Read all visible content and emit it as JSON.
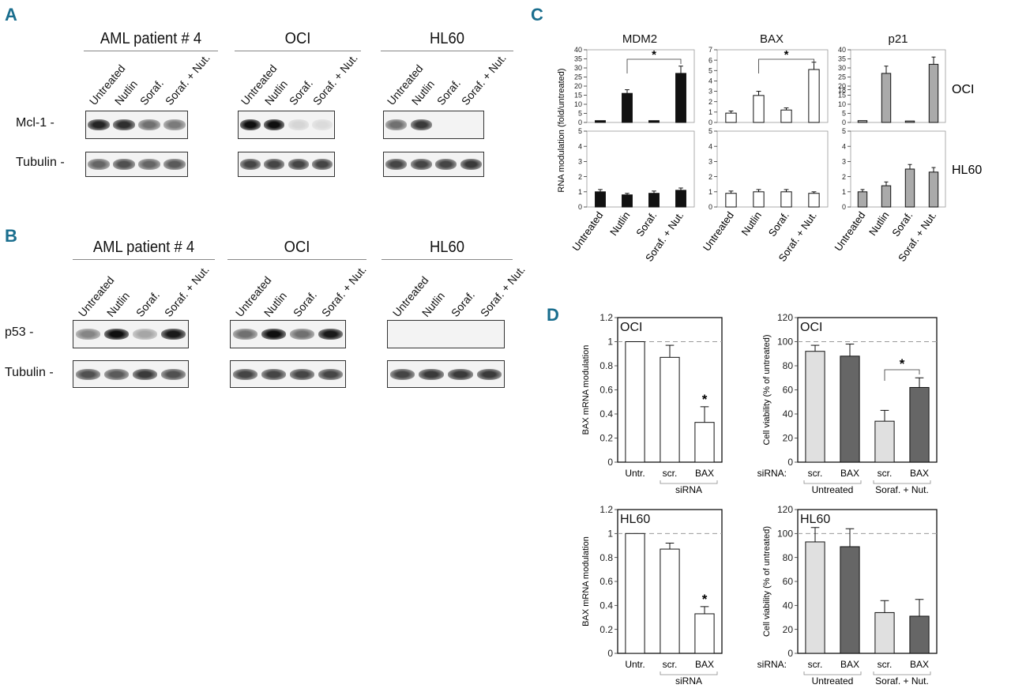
{
  "panel_a": {
    "letter": "A",
    "lane_labels": [
      "Untreated",
      "Nutlin",
      "Soraf.",
      "Soraf. + Nut."
    ],
    "groups": [
      {
        "title": "AML patient # 4",
        "mcl1": [
          0.9,
          0.85,
          0.55,
          0.5
        ],
        "tubulin": [
          0.6,
          0.7,
          0.6,
          0.65
        ]
      },
      {
        "title": "OCI",
        "mcl1": [
          1.0,
          1.0,
          0.08,
          0.05
        ],
        "tubulin": [
          0.75,
          0.75,
          0.75,
          0.75
        ]
      },
      {
        "title": "HL60",
        "mcl1": [
          0.55,
          0.8,
          0.0,
          0.0
        ],
        "tubulin": [
          0.75,
          0.75,
          0.75,
          0.8
        ]
      }
    ],
    "row_labels": [
      "Mcl-1",
      "Tubulin"
    ]
  },
  "panel_b": {
    "letter": "B",
    "lane_labels": [
      "Untreated",
      "Nutlin",
      "Soraf.",
      "Soraf. + Nut."
    ],
    "groups": [
      {
        "title": "AML patient # 4",
        "p53": [
          0.45,
          1.0,
          0.3,
          0.95
        ],
        "tubulin": [
          0.7,
          0.65,
          0.8,
          0.7
        ]
      },
      {
        "title": "OCI",
        "p53": [
          0.55,
          1.0,
          0.55,
          0.95
        ],
        "tubulin": [
          0.75,
          0.75,
          0.75,
          0.75
        ]
      },
      {
        "title": "HL60",
        "p53": [
          0.0,
          0.0,
          0.0,
          0.0
        ],
        "tubulin": [
          0.75,
          0.8,
          0.8,
          0.8
        ]
      }
    ],
    "row_labels": [
      "p53",
      "Tubulin"
    ]
  },
  "panel_c": {
    "letter": "C",
    "ylabel": "RNA modulation (fold/untreated)",
    "row_labels": [
      "OCI",
      "HL60"
    ],
    "star": "*"
  },
  "panel_d": {
    "letter": "D",
    "cell_line_labels": [
      "OCI",
      "HL60"
    ],
    "bax_ylabel": "BAX mRNA modulation",
    "via_ylabel": "Cell viability (% of untreated)",
    "sirna_label": "siRNA",
    "sirna_prefix": "siRNA:",
    "group_labels": [
      "Untreated",
      "Soraf. + Nut."
    ],
    "star": "*"
  },
  "chart_data": [
    {
      "type": "bar",
      "title": "MDM2",
      "cell_line": "OCI",
      "categories": [
        "Untreated",
        "Nutlin",
        "Soraf.",
        "Soraf. + Nut."
      ],
      "values": [
        1,
        16,
        1,
        27
      ],
      "errors": [
        0,
        2,
        0,
        4
      ],
      "ylim": [
        0,
        40
      ],
      "yticks": [
        0,
        5,
        10,
        15,
        20,
        25,
        30,
        35,
        40
      ],
      "color": "#111111",
      "significance": "Nutlin vs Soraf. + Nut."
    },
    {
      "type": "bar",
      "title": "BAX",
      "cell_line": "OCI",
      "categories": [
        "Untreated",
        "Nutlin",
        "Soraf.",
        "Soraf. + Nut."
      ],
      "values": [
        0.9,
        2.6,
        1.2,
        5.1
      ],
      "errors": [
        0.2,
        0.4,
        0.2,
        0.7
      ],
      "ylim": [
        0,
        7
      ],
      "yticks": [
        0,
        1,
        2,
        3,
        4,
        5,
        6,
        7
      ],
      "color": "#ffffff",
      "significance": "Nutlin vs Soraf. + Nut."
    },
    {
      "type": "bar",
      "title": "p21",
      "cell_line": "OCI",
      "categories": [
        "Untreated",
        "Nutlin",
        "Soraf.",
        "Soraf. + Nut."
      ],
      "values": [
        1,
        27,
        0.8,
        32
      ],
      "errors": [
        0,
        4,
        0,
        4
      ],
      "ylim": [
        0,
        40
      ],
      "yticks": [
        0,
        5,
        10,
        15,
        18,
        20,
        25,
        30,
        35,
        40
      ],
      "color": "#aaaaaa",
      "significance": null
    },
    {
      "type": "bar",
      "cell_line": "HL60",
      "categories": [
        "Untreated",
        "Nutlin",
        "Soraf.",
        "Soraf. + Nut."
      ],
      "values": [
        1.0,
        0.8,
        0.9,
        1.1
      ],
      "errors": [
        0.15,
        0.1,
        0.15,
        0.15
      ],
      "ylim": [
        0,
        5
      ],
      "yticks": [
        0,
        1,
        2,
        3,
        4,
        5
      ],
      "color": "#111111"
    },
    {
      "type": "bar",
      "cell_line": "HL60",
      "categories": [
        "Untreated",
        "Nutlin",
        "Soraf.",
        "Soraf. + Nut."
      ],
      "values": [
        0.9,
        1.0,
        1.0,
        0.9
      ],
      "errors": [
        0.15,
        0.15,
        0.15,
        0.1
      ],
      "ylim": [
        0,
        5
      ],
      "yticks": [
        0,
        1,
        2,
        3,
        4,
        5
      ],
      "color": "#ffffff"
    },
    {
      "type": "bar",
      "cell_line": "HL60",
      "categories": [
        "Untreated",
        "Nutlin",
        "Soraf.",
        "Soraf. + Nut."
      ],
      "values": [
        1.0,
        1.4,
        2.5,
        2.3
      ],
      "errors": [
        0.15,
        0.25,
        0.3,
        0.3
      ],
      "ylim": [
        0,
        5
      ],
      "yticks": [
        0,
        1,
        2,
        3,
        4,
        5
      ],
      "color": "#aaaaaa"
    },
    {
      "type": "bar",
      "cell_line": "OCI",
      "ylabel": "BAX mRNA modulation",
      "categories": [
        "Untr.",
        "scr.",
        "BAX"
      ],
      "values": [
        1.0,
        0.87,
        0.33
      ],
      "errors": [
        0,
        0.1,
        0.13
      ],
      "ylim": [
        0,
        1.2
      ],
      "yticks": [
        0,
        0.2,
        0.4,
        0.6,
        0.8,
        1,
        1.2
      ],
      "reference_line": 1,
      "significance": "BAX"
    },
    {
      "type": "bar",
      "cell_line": "OCI",
      "ylabel": "Cell viability (% of untreated)",
      "categories": [
        "scr.",
        "BAX",
        "scr.",
        "BAX"
      ],
      "groups": [
        "Untreated",
        "Untreated",
        "Soraf. + Nut.",
        "Soraf. + Nut."
      ],
      "values": [
        92,
        88,
        34,
        62
      ],
      "errors": [
        5,
        10,
        9,
        8
      ],
      "ylim": [
        0,
        120
      ],
      "yticks": [
        0,
        20,
        40,
        60,
        80,
        100,
        120
      ],
      "reference_line": 100,
      "significance": "Soraf. + Nut. scr. vs BAX"
    },
    {
      "type": "bar",
      "cell_line": "HL60",
      "ylabel": "BAX mRNA modulation",
      "categories": [
        "Untr.",
        "scr.",
        "BAX"
      ],
      "values": [
        1.0,
        0.87,
        0.33
      ],
      "errors": [
        0,
        0.05,
        0.06
      ],
      "ylim": [
        0,
        1.2
      ],
      "yticks": [
        0,
        0.2,
        0.4,
        0.6,
        0.8,
        1,
        1.2
      ],
      "reference_line": 1,
      "significance": "BAX"
    },
    {
      "type": "bar",
      "cell_line": "HL60",
      "ylabel": "Cell viability (% of untreated)",
      "categories": [
        "scr.",
        "BAX",
        "scr.",
        "BAX"
      ],
      "groups": [
        "Untreated",
        "Untreated",
        "Soraf. + Nut.",
        "Soraf. + Nut."
      ],
      "values": [
        93,
        89,
        34,
        31
      ],
      "errors": [
        12,
        15,
        10,
        14
      ],
      "ylim": [
        0,
        120
      ],
      "yticks": [
        0,
        20,
        40,
        60,
        80,
        100,
        120
      ],
      "reference_line": 100
    }
  ]
}
